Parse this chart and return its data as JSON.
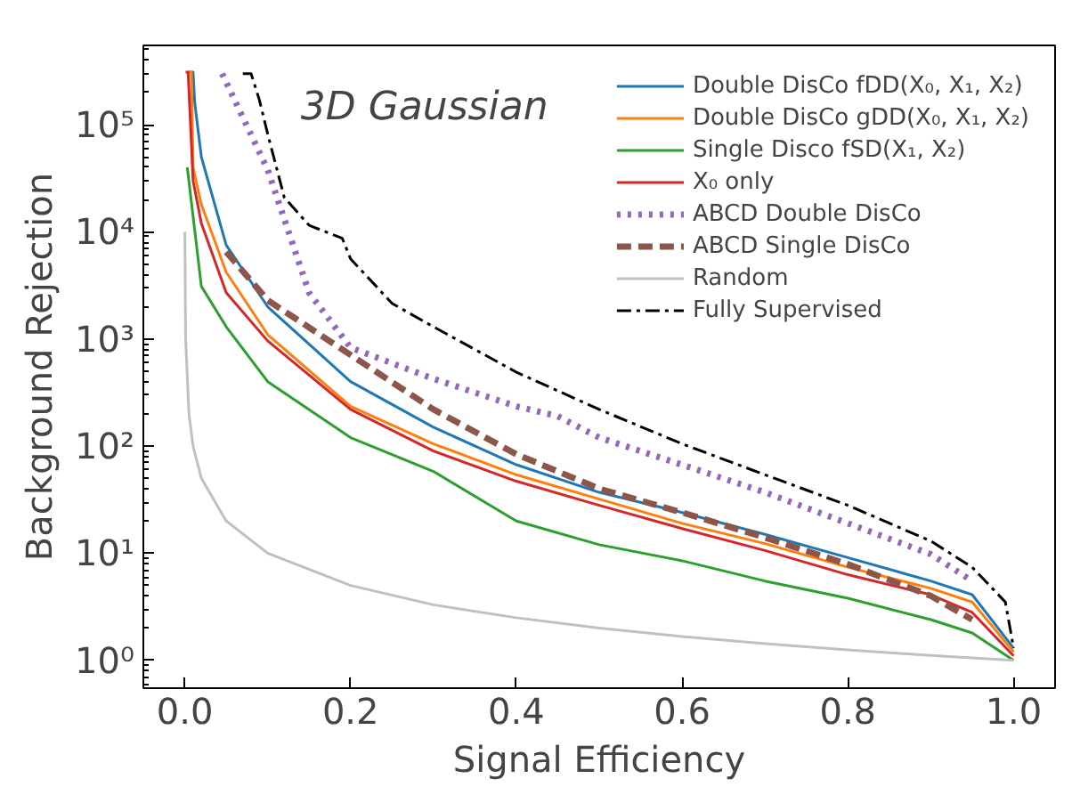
{
  "chart_data": {
    "type": "line",
    "xlabel": "Signal Efficiency",
    "ylabel": "Background Rejection",
    "annotations": [
      "3D Gaussian"
    ],
    "log": "y",
    "grid": false,
    "legend": "top right",
    "marker": "none",
    "xlim": [
      -0.05,
      1.05
    ],
    "xticks": [
      {
        "value": 0,
        "label": "0.0"
      },
      {
        "value": 0.2,
        "label": "0.2"
      },
      {
        "value": 0.4,
        "label": "0.4"
      },
      {
        "value": 0.6,
        "label": "0.6"
      },
      {
        "value": 0.8,
        "label": "0.8"
      },
      {
        "value": 1,
        "label": "1.0"
      }
    ],
    "ylim": [
      0.55,
      550000
    ],
    "yticks": [
      {
        "value": 1,
        "label": "10⁰"
      },
      {
        "value": 10,
        "label": "10¹"
      },
      {
        "value": 100,
        "label": "10²"
      },
      {
        "value": 1000,
        "label": "10³"
      },
      {
        "value": 10000,
        "label": "10⁴"
      },
      {
        "value": 100000,
        "label": "10⁵"
      }
    ],
    "series": [
      {
        "name": "Double DisCo fDD(X₀, X₁, X₂)",
        "color": "#1f77b4",
        "line_style": "solid",
        "x": [
          0.005,
          0.01,
          0.012,
          0.02,
          0.05,
          0.1,
          0.2,
          0.3,
          0.4,
          0.5,
          0.6,
          0.7,
          0.8,
          0.9,
          0.95,
          1.0
        ],
        "values": [
          310000,
          310000,
          160000,
          50000,
          7500,
          2000,
          400,
          150,
          67,
          37,
          24,
          15,
          9.1,
          5.5,
          4.1,
          1.3
        ]
      },
      {
        "name": "Double DisCo gDD(X₀, X₁, X₂)",
        "color": "#ff7f0e",
        "line_style": "solid",
        "x": [
          0.003,
          0.008,
          0.01,
          0.02,
          0.05,
          0.1,
          0.2,
          0.3,
          0.4,
          0.5,
          0.6,
          0.7,
          0.8,
          0.9,
          0.95,
          1.0
        ],
        "values": [
          310000,
          310000,
          40000,
          18000,
          4200,
          1100,
          235,
          105,
          54,
          32,
          19,
          12.3,
          7.4,
          4.7,
          3.5,
          1.2
        ]
      },
      {
        "name": "Single Disco fSD(X₁, X₂)",
        "color": "#2ca02c",
        "line_style": "solid",
        "x": [
          0.003,
          0.02,
          0.05,
          0.1,
          0.2,
          0.3,
          0.4,
          0.5,
          0.6,
          0.7,
          0.8,
          0.9,
          0.95,
          1.0
        ],
        "values": [
          40000,
          3100,
          1300,
          400,
          120,
          58,
          20,
          12,
          8.5,
          5.5,
          3.8,
          2.4,
          1.8,
          1.0
        ]
      },
      {
        "name": "X₀ only",
        "color": "#d62728",
        "line_style": "solid",
        "x": [
          0.001,
          0.004,
          0.01,
          0.02,
          0.05,
          0.1,
          0.2,
          0.3,
          0.4,
          0.5,
          0.6,
          0.7,
          0.8,
          0.9,
          0.95,
          1.0
        ],
        "values": [
          310000,
          310000,
          30000,
          12000,
          2700,
          960,
          220,
          90,
          47,
          28,
          17,
          10.6,
          6.3,
          4.1,
          2.8,
          1.1
        ]
      },
      {
        "name": "ABCD Double DisCo",
        "color": "#9467bd",
        "line_style": "dotted",
        "x": [
          0.045,
          0.1,
          0.15,
          0.2,
          0.3,
          0.4,
          0.45,
          0.5,
          0.6,
          0.7,
          0.8,
          0.9,
          0.95
        ],
        "values": [
          300000,
          38000,
          2700,
          830,
          425,
          235,
          190,
          120,
          67,
          37,
          19,
          9.8,
          5.5
        ]
      },
      {
        "name": "ABCD Single DisCo",
        "color": "#8c564b",
        "line_style": "dashed",
        "x": [
          0.05,
          0.1,
          0.2,
          0.3,
          0.4,
          0.5,
          0.6,
          0.7,
          0.8,
          0.9,
          0.95
        ],
        "values": [
          6500,
          2300,
          710,
          220,
          84,
          40,
          24,
          14,
          7.9,
          4.0,
          2.4
        ]
      },
      {
        "name": "Random",
        "color": "#c0c0c0",
        "line_style": "solid",
        "x": [
          0.0001,
          0.001,
          0.005,
          0.01,
          0.02,
          0.05,
          0.1,
          0.2,
          0.3,
          0.4,
          0.5,
          0.6,
          0.7,
          0.8,
          0.9,
          1.0
        ],
        "values": [
          10000,
          1000,
          200,
          100,
          50,
          20,
          10,
          5,
          3.3,
          2.5,
          2,
          1.67,
          1.43,
          1.25,
          1.11,
          1
        ]
      },
      {
        "name": "Fully Supervised",
        "color": "#000000",
        "line_style": "dashdot",
        "x": [
          0.07,
          0.08,
          0.09,
          0.1,
          0.12,
          0.15,
          0.19,
          0.2,
          0.25,
          0.3,
          0.4,
          0.5,
          0.6,
          0.7,
          0.8,
          0.9,
          0.95,
          0.99,
          1.0
        ],
        "values": [
          300000,
          300000,
          170000,
          82000,
          21000,
          11500,
          8700,
          5600,
          2150,
          1300,
          490,
          220,
          105,
          54,
          28,
          13,
          7.4,
          3.5,
          1.3
        ]
      }
    ]
  }
}
